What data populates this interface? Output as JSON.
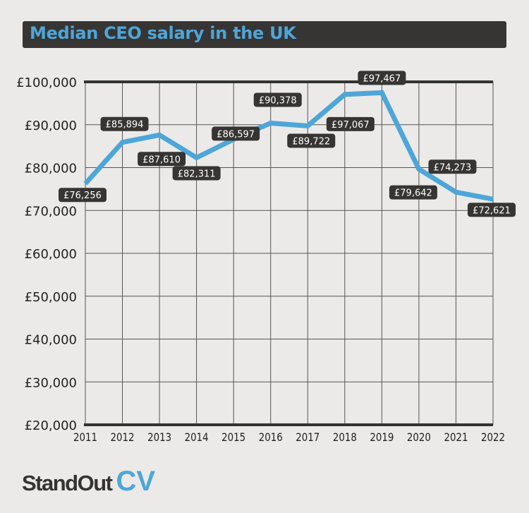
{
  "colors": {
    "line": "#4ea6d8",
    "label_bg": "#363533",
    "title_bg": "#363533",
    "background": "#ebeae8"
  },
  "logo": {
    "part1": "StandOut",
    "part2": "CV"
  },
  "chart_data": {
    "type": "line",
    "title": "Median CEO salary in the UK",
    "xlabel": "",
    "ylabel": "",
    "categories": [
      "2011",
      "2012",
      "2013",
      "2014",
      "2015",
      "2016",
      "2017",
      "2018",
      "2019",
      "2020",
      "2021",
      "2022"
    ],
    "values": [
      76256,
      85894,
      87610,
      82311,
      86597,
      90378,
      89722,
      97067,
      97467,
      79642,
      74273,
      72621
    ],
    "data_labels": [
      "£76,256",
      "£85,894",
      "£87,610",
      "£82,311",
      "£86,597",
      "£90,378",
      "£89,722",
      "£97,067",
      "£97,467",
      "£79,642",
      "£74,273",
      "£72,621"
    ],
    "ylim": [
      20000,
      100000
    ],
    "yticks": [
      20000,
      30000,
      40000,
      50000,
      60000,
      70000,
      80000,
      90000,
      100000
    ],
    "ytick_labels": [
      "£20,000",
      "£30,000",
      "£40,000",
      "£50,000",
      "£60,000",
      "£70,000",
      "£80,000",
      "£90,000",
      "£100,000"
    ],
    "grid": true,
    "legend": "none"
  }
}
